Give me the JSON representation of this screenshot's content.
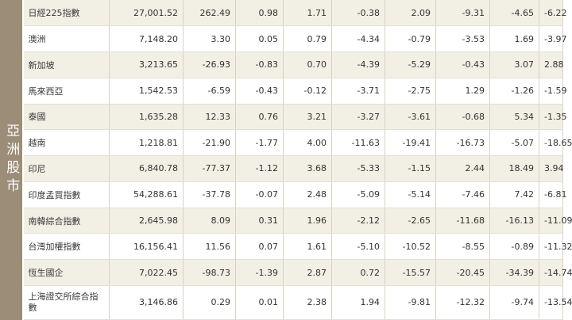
{
  "section_label": "亞洲股市",
  "rows": [
    {
      "name": "日經225指數",
      "cells": [
        "27,001.52",
        "262.49",
        "0.98",
        "1.71",
        "-0.38",
        "2.09",
        "-9.31",
        "-4.65",
        "-6.22"
      ]
    },
    {
      "name": "澳洲",
      "cells": [
        "7,148.20",
        "3.30",
        "0.05",
        "0.79",
        "-4.34",
        "-0.79",
        "-3.53",
        "1.69",
        "-3.97"
      ]
    },
    {
      "name": "新加坡",
      "cells": [
        "3,213.65",
        "-26.93",
        "-0.83",
        "0.70",
        "-4.39",
        "-5.29",
        "-0.43",
        "3.07",
        "2.88"
      ]
    },
    {
      "name": "馬來西亞",
      "cells": [
        "1,542.53",
        "-6.59",
        "-0.43",
        "-0.12",
        "-3.71",
        "-2.75",
        "1.29",
        "-1.26",
        "-1.59"
      ]
    },
    {
      "name": "泰國",
      "cells": [
        "1,635.28",
        "12.33",
        "0.76",
        "3.21",
        "-3.27",
        "-3.61",
        "-0.68",
        "5.34",
        "-1.35"
      ]
    },
    {
      "name": "越南",
      "cells": [
        "1,218.81",
        "-21.90",
        "-1.77",
        "4.00",
        "-11.63",
        "-19.41",
        "-16.73",
        "-5.07",
        "-18.65"
      ]
    },
    {
      "name": "印尼",
      "cells": [
        "6,840.78",
        "-77.37",
        "-1.12",
        "3.68",
        "-5.33",
        "-1.15",
        "2.44",
        "18.49",
        "3.94"
      ]
    },
    {
      "name": "印度孟買指數",
      "cells": [
        "54,288.61",
        "-37.78",
        "-0.07",
        "2.48",
        "-5.09",
        "-5.14",
        "-7.46",
        "7.42",
        "-6.81"
      ]
    },
    {
      "name": "南韓綜合指數",
      "cells": [
        "2,645.98",
        "8.09",
        "0.31",
        "1.96",
        "-2.12",
        "-2.65",
        "-11.68",
        "-16.13",
        "-11.09"
      ]
    },
    {
      "name": "台灣加權指數",
      "cells": [
        "16,156.41",
        "11.56",
        "0.07",
        "1.61",
        "-5.10",
        "-10.52",
        "-8.55",
        "-0.89",
        "-11.32"
      ]
    },
    {
      "name": "恆生國企",
      "cells": [
        "7,022.45",
        "-98.73",
        "-1.39",
        "2.87",
        "0.72",
        "-15.57",
        "-20.45",
        "-34.39",
        "-14.74"
      ]
    },
    {
      "name": "上海證交所綜合指數",
      "cells": [
        "3,146.86",
        "0.29",
        "0.01",
        "2.38",
        "1.94",
        "-9.81",
        "-12.32",
        "-9.74",
        "-13.54"
      ]
    }
  ]
}
